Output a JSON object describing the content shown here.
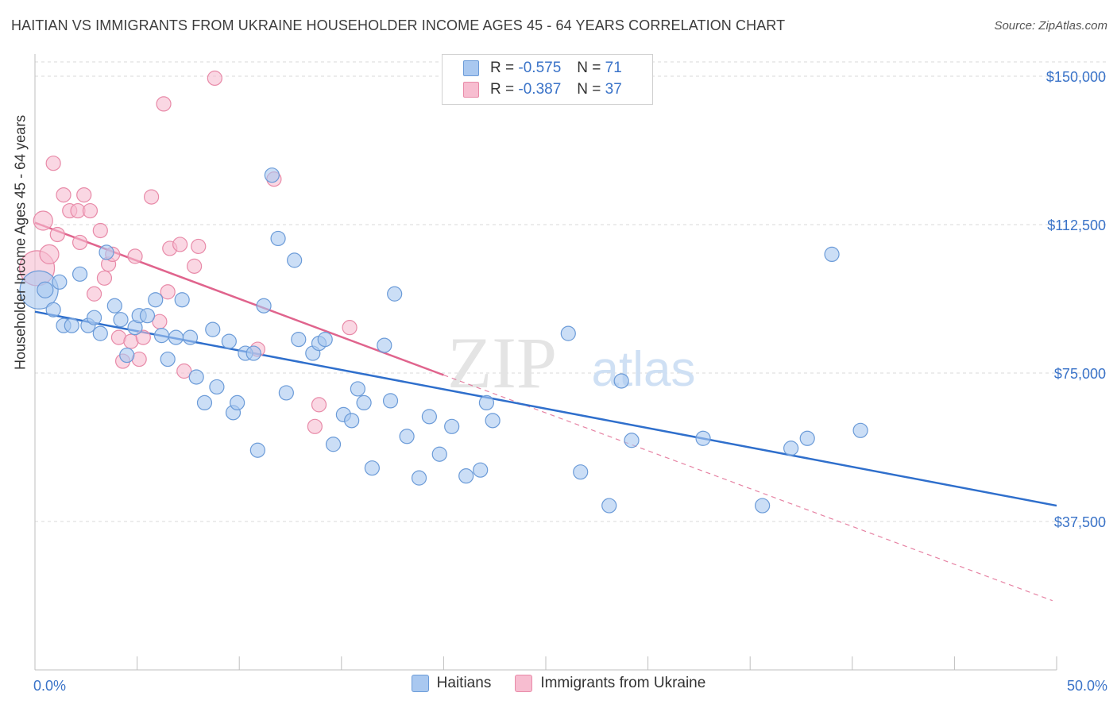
{
  "title": "HAITIAN VS IMMIGRANTS FROM UKRAINE HOUSEHOLDER INCOME AGES 45 - 64 YEARS CORRELATION CHART",
  "source": "Source: ZipAtlas.com",
  "watermark": {
    "zip": "ZIP",
    "atlas": "atlas"
  },
  "legend": {
    "r_label": "R =",
    "n_label": "N =",
    "haitians": {
      "r": "-0.575",
      "n": "71"
    },
    "ukraine": {
      "r": "-0.387",
      "n": "37"
    }
  },
  "colors": {
    "haitians_fill": "#a9c8f0",
    "haitians_stroke": "#6b9bd8",
    "haitians_line": "#2f6fcc",
    "ukraine_fill": "#f7bdd0",
    "ukraine_stroke": "#e88aa8",
    "ukraine_line": "#e0648d",
    "axis_text": "#3a73c8"
  },
  "chart_data": {
    "type": "scatter",
    "title": "HAITIAN VS IMMIGRANTS FROM UKRAINE HOUSEHOLDER INCOME AGES 45 - 64 YEARS CORRELATION CHART",
    "xlabel": "",
    "ylabel": "Householder Income Ages 45 - 64 years",
    "xlim": [
      0,
      50
    ],
    "ylim": [
      0,
      157000
    ],
    "x_tick_labels": [
      "0.0%",
      "50.0%"
    ],
    "y_ticks": [
      37500,
      75000,
      112500,
      150000
    ],
    "y_tick_labels": [
      "$37,500",
      "$75,000",
      "$112,500",
      "$150,000"
    ],
    "grid": true,
    "legend_position": "top-center",
    "series": [
      {
        "name": "Haitians",
        "r": -0.575,
        "n": 71,
        "trend": {
          "x": [
            0,
            50
          ],
          "y": [
            90500,
            41500
          ]
        },
        "points": [
          [
            0.2,
            96000,
            24
          ],
          [
            0.5,
            96000,
            10
          ],
          [
            0.9,
            91000,
            9
          ],
          [
            1.2,
            98000,
            9
          ],
          [
            1.4,
            87000,
            9
          ],
          [
            1.8,
            87000,
            9
          ],
          [
            2.2,
            100000,
            9
          ],
          [
            2.6,
            87000,
            9
          ],
          [
            2.9,
            89000,
            9
          ],
          [
            3.2,
            85000,
            9
          ],
          [
            3.5,
            105500,
            9
          ],
          [
            3.9,
            92000,
            9
          ],
          [
            4.2,
            88500,
            9
          ],
          [
            4.5,
            79500,
            9
          ],
          [
            4.9,
            86500,
            9
          ],
          [
            5.1,
            89500,
            9
          ],
          [
            5.5,
            89500,
            9
          ],
          [
            5.9,
            93500,
            9
          ],
          [
            6.2,
            84500,
            9
          ],
          [
            6.5,
            78500,
            9
          ],
          [
            6.9,
            84000,
            9
          ],
          [
            7.2,
            93500,
            9
          ],
          [
            7.6,
            84000,
            9
          ],
          [
            7.9,
            74000,
            9
          ],
          [
            8.3,
            67500,
            9
          ],
          [
            8.7,
            86000,
            9
          ],
          [
            8.9,
            71500,
            9
          ],
          [
            9.5,
            83000,
            9
          ],
          [
            9.7,
            65000,
            9
          ],
          [
            9.9,
            67500,
            9
          ],
          [
            10.3,
            80000,
            9
          ],
          [
            10.7,
            80000,
            9
          ],
          [
            10.9,
            55500,
            9
          ],
          [
            11.2,
            92000,
            9
          ],
          [
            11.6,
            125000,
            9
          ],
          [
            11.9,
            109000,
            9
          ],
          [
            12.3,
            70000,
            9
          ],
          [
            12.7,
            103500,
            9
          ],
          [
            12.9,
            83500,
            9
          ],
          [
            13.6,
            80000,
            9
          ],
          [
            13.9,
            82500,
            9
          ],
          [
            14.2,
            83500,
            9
          ],
          [
            14.6,
            57000,
            9
          ],
          [
            15.1,
            64500,
            9
          ],
          [
            15.5,
            63000,
            9
          ],
          [
            15.8,
            71000,
            9
          ],
          [
            16.1,
            67500,
            9
          ],
          [
            16.5,
            51000,
            9
          ],
          [
            17.1,
            82000,
            9
          ],
          [
            17.4,
            68000,
            9
          ],
          [
            17.6,
            95000,
            9
          ],
          [
            18.2,
            59000,
            9
          ],
          [
            18.8,
            48500,
            9
          ],
          [
            19.3,
            64000,
            9
          ],
          [
            19.8,
            54500,
            9
          ],
          [
            20.4,
            61500,
            9
          ],
          [
            21.1,
            49000,
            9
          ],
          [
            21.8,
            50500,
            9
          ],
          [
            22.1,
            67500,
            9
          ],
          [
            22.4,
            63000,
            9
          ],
          [
            26.1,
            85000,
            9
          ],
          [
            26.7,
            50000,
            9
          ],
          [
            28.1,
            41500,
            9
          ],
          [
            28.7,
            73000,
            9
          ],
          [
            29.2,
            58000,
            9
          ],
          [
            32.7,
            58500,
            9
          ],
          [
            35.6,
            41500,
            9
          ],
          [
            37.0,
            56000,
            9
          ],
          [
            37.8,
            58500,
            9
          ],
          [
            39.0,
            105000,
            9
          ],
          [
            40.4,
            60500,
            9
          ]
        ]
      },
      {
        "name": "Immigrants from Ukraine",
        "r": -0.387,
        "n": 37,
        "trend": {
          "x": [
            0,
            20
          ],
          "y": [
            113000,
            74500
          ]
        },
        "trend_dashed": {
          "x": [
            20,
            49.8
          ],
          "y": [
            74500,
            17500
          ]
        },
        "points": [
          [
            0.1,
            101500,
            22
          ],
          [
            0.4,
            113500,
            12
          ],
          [
            0.7,
            105000,
            12
          ],
          [
            0.9,
            128000,
            9
          ],
          [
            1.1,
            110000,
            9
          ],
          [
            1.4,
            120000,
            9
          ],
          [
            1.7,
            116000,
            9
          ],
          [
            2.1,
            116000,
            9
          ],
          [
            2.2,
            108000,
            9
          ],
          [
            2.4,
            120000,
            9
          ],
          [
            2.7,
            116000,
            9
          ],
          [
            2.9,
            95000,
            9
          ],
          [
            3.2,
            111000,
            9
          ],
          [
            3.4,
            99000,
            9
          ],
          [
            3.6,
            102500,
            9
          ],
          [
            3.8,
            105000,
            9
          ],
          [
            4.1,
            84000,
            9
          ],
          [
            4.3,
            78000,
            9
          ],
          [
            4.7,
            83000,
            9
          ],
          [
            4.9,
            104500,
            9
          ],
          [
            5.1,
            78500,
            9
          ],
          [
            5.3,
            84000,
            9
          ],
          [
            5.7,
            119500,
            9
          ],
          [
            6.1,
            88000,
            9
          ],
          [
            6.3,
            143000,
            9
          ],
          [
            6.5,
            95500,
            9
          ],
          [
            6.6,
            106500,
            9
          ],
          [
            7.1,
            107500,
            9
          ],
          [
            7.3,
            75500,
            9
          ],
          [
            7.8,
            102000,
            9
          ],
          [
            8.0,
            107000,
            9
          ],
          [
            8.8,
            149500,
            9
          ],
          [
            10.9,
            81000,
            9
          ],
          [
            11.7,
            124000,
            9
          ],
          [
            13.7,
            61500,
            9
          ],
          [
            13.9,
            67000,
            9
          ],
          [
            15.4,
            86500,
            9
          ]
        ]
      }
    ]
  }
}
